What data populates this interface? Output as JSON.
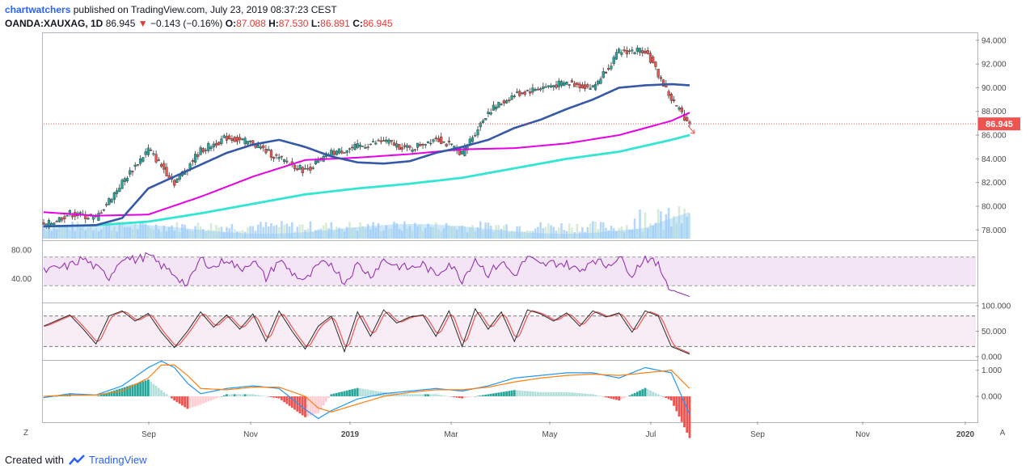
{
  "header": {
    "user": "chartwatchers",
    "published": "published on TradingView.com, July 23, 2019 08:37:23 CEST",
    "symbol": "OANDA:XAUXAG, 1D",
    "last": "86.945",
    "change": "−0.143 (−0.16%)",
    "o_label": "O:",
    "o_value": "87.088",
    "h_label": "H:",
    "h_value": "87.530",
    "l_label": "L:",
    "l_value": "86.891",
    "c_label": "C:",
    "c_value": "86.945"
  },
  "price_badge": "86.945",
  "footer": {
    "created_with": "Created with",
    "brand": "TradingView"
  },
  "buttons": {
    "zoom": "Z",
    "auto": "A"
  },
  "colors": {
    "up": "#26a69a",
    "down": "#ef5350",
    "sma_short": "#3559a8",
    "sma_mid": "#e600e6",
    "sma_long": "#33e6d1",
    "rsi": "#8e24aa",
    "stoch_k": "#2a2a2a",
    "stoch_d": "#ef5350",
    "macd": "#2196f3",
    "signal": "#ff7f0e",
    "badge": "#ef5350",
    "volume": "#90caf9"
  },
  "chart_data": [
    {
      "type": "line",
      "title": "OANDA:XAUXAG, 1D",
      "note": "candlestick price panel with three moving averages and volume",
      "y_ticks": [
        "94.000",
        "92.000",
        "90.000",
        "88.000",
        "86.000",
        "84.000",
        "82.000",
        "80.000",
        "78.000"
      ],
      "ylim": [
        77.2,
        94.6
      ],
      "x_ticks": [
        "Sep",
        "Nov",
        "2019",
        "Mar",
        "May",
        "Jul",
        "Sep",
        "Nov",
        "2020"
      ],
      "last_price": 86.945,
      "close_anchors": {
        "x": [
          0,
          10,
          20,
          30,
          40,
          50,
          60,
          70,
          80,
          90,
          100,
          110,
          120,
          130,
          140,
          150,
          160,
          170,
          180,
          190,
          200,
          210,
          220,
          230,
          240,
          247
        ],
        "y": [
          78.3,
          79.4,
          79.0,
          82.0,
          84.8,
          82.0,
          84.7,
          85.8,
          85.3,
          84.0,
          83.0,
          84.5,
          85.0,
          85.5,
          84.8,
          85.8,
          84.5,
          88.0,
          89.4,
          90.0,
          90.4,
          90.0,
          93.0,
          93.2,
          89.0,
          86.945
        ]
      },
      "sma_short": {
        "x": [
          0,
          20,
          30,
          40,
          50,
          60,
          70,
          80,
          90,
          100,
          110,
          120,
          130,
          140,
          150,
          160,
          170,
          180,
          190,
          200,
          210,
          220,
          230,
          240,
          247
        ],
        "y": [
          78.3,
          78.4,
          79.0,
          81.5,
          82.5,
          83.5,
          84.5,
          85.2,
          85.6,
          85.0,
          84.2,
          83.7,
          83.6,
          83.8,
          84.5,
          85.0,
          85.6,
          86.6,
          87.3,
          88.2,
          89.0,
          90.0,
          90.2,
          90.3,
          90.2
        ]
      },
      "sma_mid": {
        "x": [
          0,
          20,
          40,
          60,
          80,
          100,
          120,
          140,
          160,
          180,
          200,
          220,
          230,
          240,
          247
        ],
        "y": [
          79.5,
          79.2,
          79.3,
          80.8,
          82.5,
          83.9,
          84.1,
          84.4,
          84.8,
          84.9,
          85.3,
          86.0,
          86.6,
          87.2,
          87.9
        ]
      },
      "sma_long": {
        "x": [
          0,
          20,
          40,
          60,
          80,
          100,
          120,
          140,
          160,
          180,
          200,
          220,
          240,
          247
        ],
        "y": [
          78.3,
          78.4,
          78.7,
          79.4,
          80.2,
          81.0,
          81.5,
          81.9,
          82.4,
          83.2,
          84.0,
          84.6,
          85.6,
          86.0
        ]
      }
    },
    {
      "type": "line",
      "title": "",
      "note": "RSI oscillator",
      "y_ticks": [
        "80.00",
        "40.00"
      ],
      "ylim": [
        10,
        90
      ],
      "band": [
        30,
        70
      ],
      "values_x": [
        0,
        10,
        15,
        20,
        25,
        30,
        35,
        40,
        45,
        50,
        55,
        60,
        65,
        70,
        75,
        80,
        85,
        90,
        95,
        100,
        105,
        110,
        115,
        120,
        125,
        130,
        135,
        140,
        145,
        150,
        155,
        160,
        165,
        170,
        175,
        180,
        185,
        190,
        195,
        200,
        205,
        210,
        215,
        220,
        225,
        230,
        235,
        240,
        247
      ],
      "values_y": [
        50,
        58,
        68,
        55,
        42,
        70,
        66,
        72,
        58,
        46,
        30,
        68,
        55,
        68,
        52,
        66,
        40,
        66,
        48,
        36,
        58,
        62,
        34,
        60,
        44,
        66,
        58,
        54,
        60,
        44,
        62,
        38,
        68,
        46,
        64,
        44,
        70,
        58,
        62,
        60,
        50,
        68,
        58,
        70,
        46,
        70,
        58,
        24,
        15
      ]
    },
    {
      "type": "line",
      "title": "",
      "note": "Stochastic oscillator",
      "y_ticks": [
        "100.000",
        "50.000",
        "0.000"
      ],
      "ylim": [
        0,
        100
      ],
      "band": [
        20,
        80
      ],
      "k_x": [
        0,
        10,
        15,
        20,
        25,
        30,
        35,
        40,
        45,
        50,
        55,
        60,
        65,
        70,
        75,
        80,
        85,
        90,
        95,
        100,
        105,
        110,
        115,
        120,
        125,
        130,
        135,
        140,
        145,
        150,
        155,
        160,
        165,
        170,
        175,
        180,
        185,
        190,
        195,
        200,
        205,
        210,
        215,
        220,
        225,
        230,
        235,
        240,
        247
      ],
      "k_y": [
        60,
        82,
        55,
        25,
        80,
        90,
        70,
        85,
        48,
        18,
        50,
        88,
        58,
        82,
        54,
        84,
        30,
        90,
        50,
        15,
        60,
        80,
        10,
        88,
        40,
        92,
        66,
        78,
        82,
        40,
        90,
        20,
        94,
        54,
        88,
        30,
        92,
        84,
        70,
        86,
        60,
        90,
        78,
        86,
        48,
        90,
        80,
        20,
        5
      ]
    },
    {
      "type": "line",
      "title": "",
      "note": "MACD with signal line and histogram",
      "y_ticks": [
        "1.000",
        "0.000"
      ],
      "ylim": [
        -0.9,
        1.3
      ],
      "macd_x": [
        0,
        10,
        20,
        30,
        40,
        45,
        50,
        55,
        60,
        70,
        80,
        90,
        100,
        105,
        110,
        120,
        130,
        140,
        150,
        160,
        170,
        180,
        190,
        200,
        210,
        220,
        230,
        240,
        247
      ],
      "macd_y": [
        -0.05,
        0.1,
        0.05,
        0.4,
        1.1,
        1.35,
        1.1,
        0.5,
        0.1,
        0.3,
        0.4,
        0.3,
        -0.5,
        -0.85,
        -0.55,
        -0.1,
        0.1,
        0.2,
        0.3,
        0.2,
        0.4,
        0.7,
        0.8,
        0.9,
        0.9,
        0.7,
        1.1,
        0.9,
        -0.7
      ],
      "signal_y": [
        0.0,
        0.05,
        0.05,
        0.2,
        0.7,
        1.2,
        1.2,
        0.8,
        0.3,
        0.25,
        0.35,
        0.35,
        0.0,
        -0.45,
        -0.6,
        -0.3,
        0.0,
        0.15,
        0.25,
        0.25,
        0.35,
        0.55,
        0.7,
        0.8,
        0.85,
        0.8,
        0.9,
        1.0,
        0.3
      ]
    }
  ]
}
